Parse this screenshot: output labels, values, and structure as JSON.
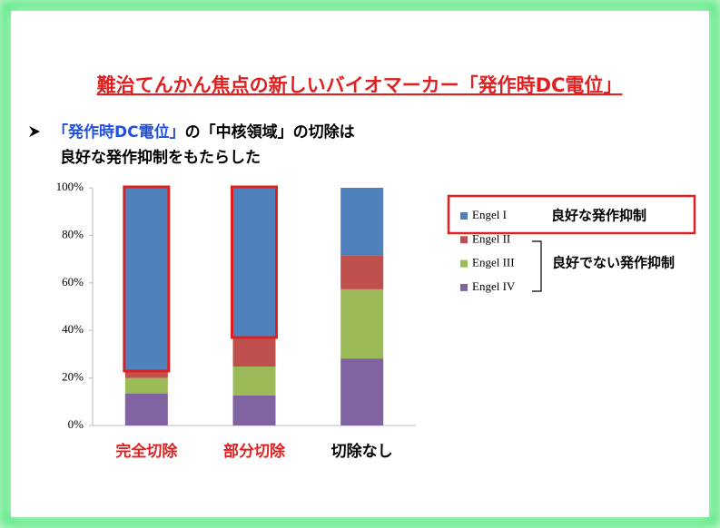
{
  "chart_data": {
    "type": "stacked-bar",
    "title": "難治てんかん焦点の新しいバイオマーカー「発作時DC電位」",
    "bullet": {
      "highlight": "「発作時DC電位」",
      "line1": "の「中核領域」の切除は",
      "line2": "良好な発作抑制をもたらした"
    },
    "categories": [
      "完全切除",
      "部分切除",
      "切除なし"
    ],
    "category_colors": [
      "#e02020",
      "#e02020",
      "#000000"
    ],
    "highlight_categories": [
      0,
      1
    ],
    "series": [
      {
        "name": "Engel I",
        "color": "#4f81bd",
        "values": [
          76.7,
          62.6,
          28.6
        ]
      },
      {
        "name": "Engel II",
        "color": "#c0504d",
        "values": [
          3.3,
          12.6,
          14.1
        ]
      },
      {
        "name": "Engel III",
        "color": "#9bbb59",
        "values": [
          6.5,
          12.2,
          29.1
        ]
      },
      {
        "name": "Engel IV",
        "color": "#8064a2",
        "values": [
          13.5,
          12.6,
          28.2
        ]
      }
    ],
    "ylim": [
      0,
      100
    ],
    "yticks": [
      {
        "value": 0,
        "label": "0%"
      },
      {
        "value": 20,
        "label": "20%"
      },
      {
        "value": 40,
        "label": "40%"
      },
      {
        "value": 60,
        "label": "60%"
      },
      {
        "value": 80,
        "label": "80%"
      },
      {
        "value": 100,
        "label": "100%"
      }
    ],
    "annotations": {
      "good": "良好な発作抑制",
      "not_good": "良好でない発作抑制"
    }
  }
}
